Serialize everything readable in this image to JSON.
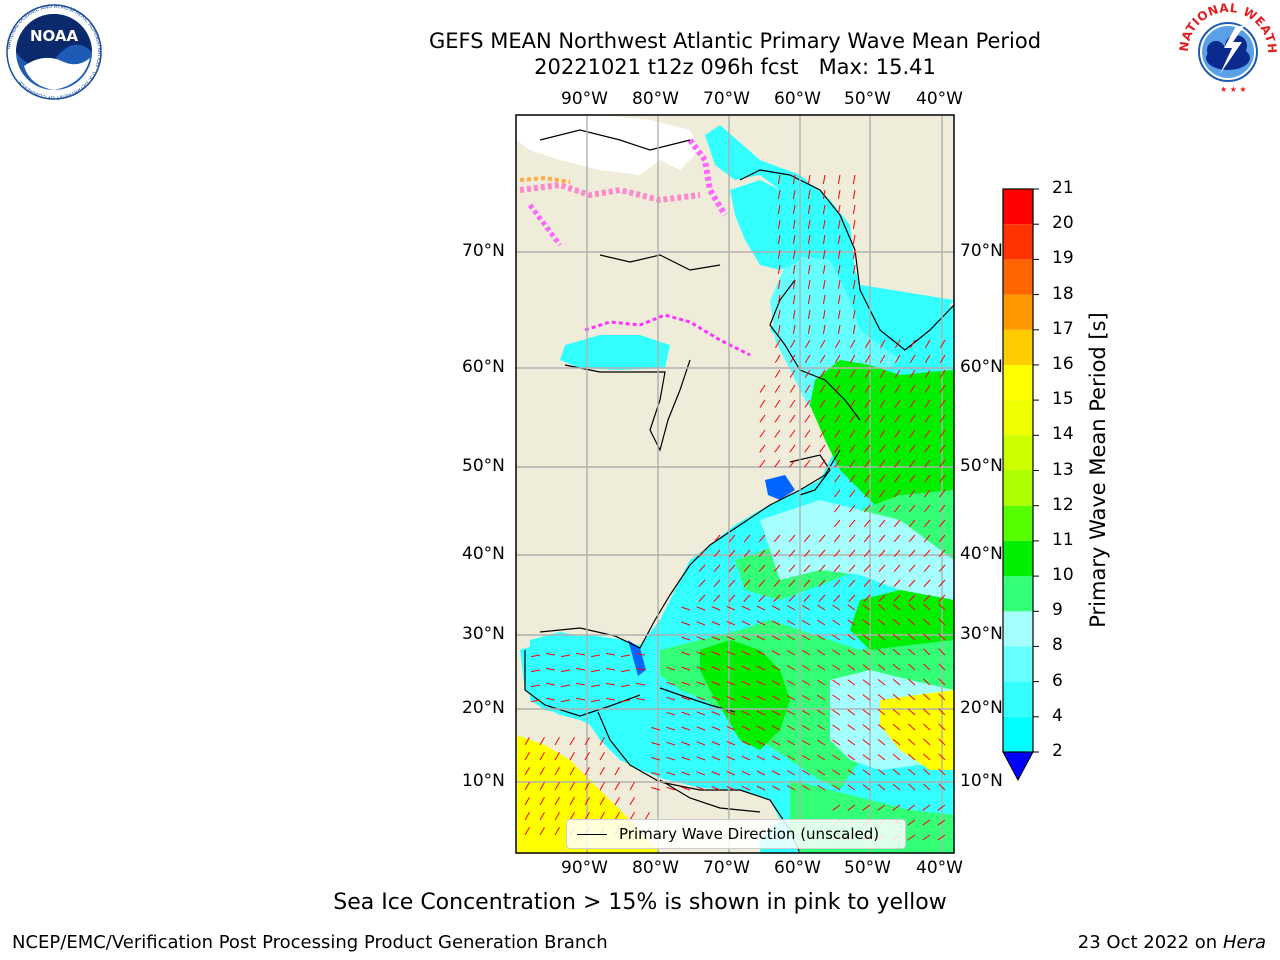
{
  "header": {
    "title_line1": "GEFS MEAN Northwest Atlantic Primary Wave Mean Period",
    "title_line2": "20221021 t12z 096h fcst   Max: 15.41"
  },
  "logos": {
    "noaa_text": "NOAA",
    "noaa_ring_text": "NATIONAL OCEANIC AND ATMOSPHERIC ADMINISTRATION · U.S. DEPARTMENT OF COMMERCE",
    "nws_ring_text": "NATIONAL WEATHER SERVICE"
  },
  "map": {
    "lon_labels": [
      "90°W",
      "80°W",
      "70°W",
      "60°W",
      "50°W",
      "40°W"
    ],
    "lat_labels": [
      "70°N",
      "60°N",
      "50°N",
      "40°N",
      "30°N",
      "20°N",
      "10°N"
    ],
    "legend_label": "Primary Wave Direction (unscaled)",
    "colors": {
      "land": "#efedda",
      "grid": "#b0b0b0",
      "arrow": "#ff0000",
      "ice": "#ff33ff"
    }
  },
  "colorbar": {
    "label": "Primary Wave Mean Period [s]",
    "ticks": [
      "2",
      "4",
      "6",
      "8",
      "9",
      "10",
      "11",
      "12",
      "13",
      "14",
      "15",
      "16",
      "17",
      "18",
      "19",
      "20",
      "21"
    ],
    "bands": [
      "#0066ff",
      "#00ffff",
      "#33ffff",
      "#66ffff",
      "#a6ffff",
      "#33ff77",
      "#00ee00",
      "#55ff00",
      "#aaff00",
      "#ccff00",
      "#eeff00",
      "#ffff00",
      "#ffcc00",
      "#ff9900",
      "#ff6600",
      "#ff3300",
      "#ff0000"
    ],
    "under_color": "#0000ff"
  },
  "footer": {
    "note": "Sea Ice Concentration > 15% is shown in pink to yellow",
    "left": "NCEP/EMC/Verification Post Processing Product Generation Branch",
    "right_date": "23 Oct 2022 on ",
    "right_machine": "Hera"
  }
}
